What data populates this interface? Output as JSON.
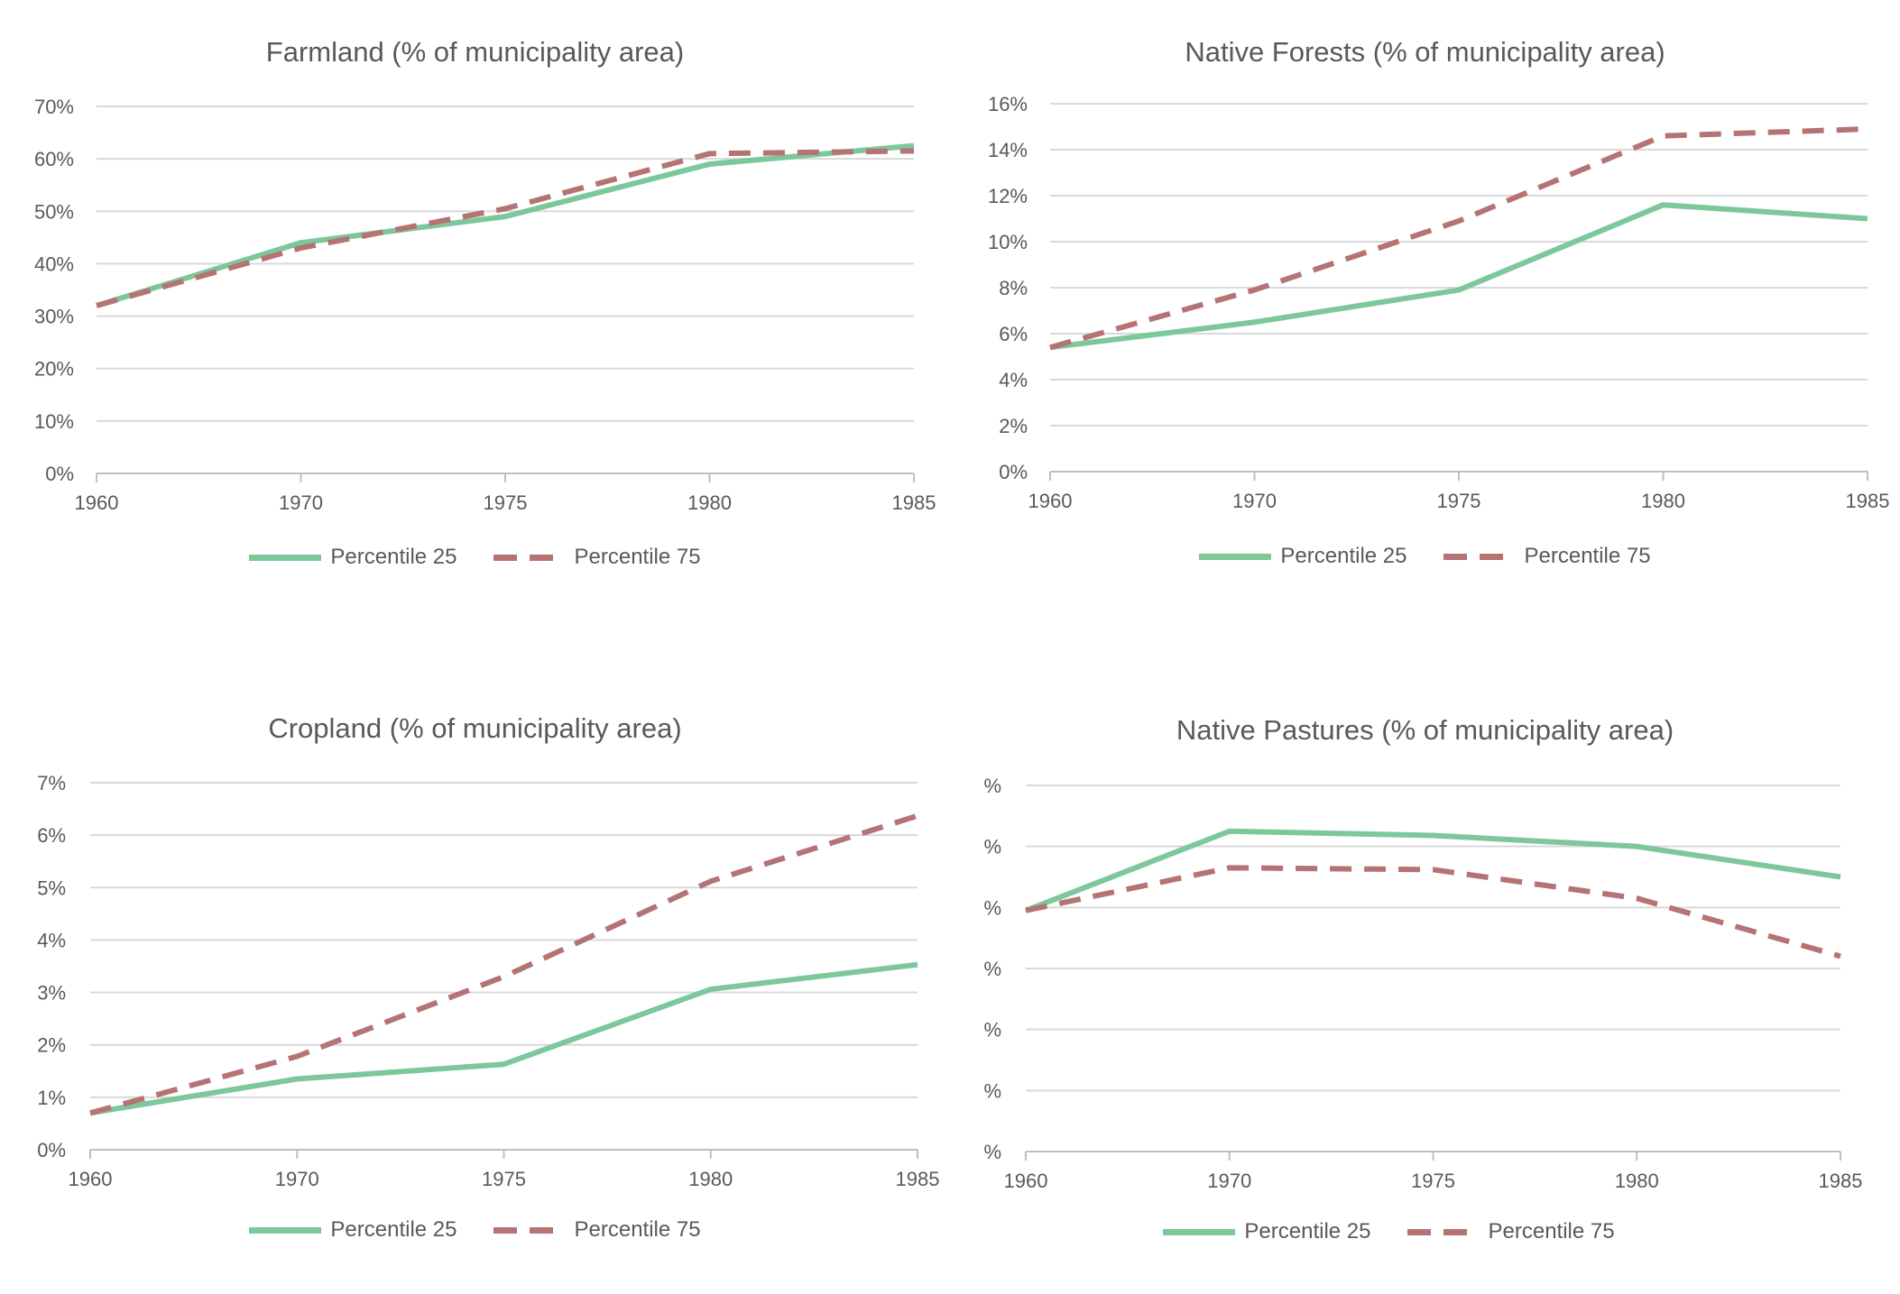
{
  "chart_data": [
    {
      "type": "line",
      "title": "Farmland (% of municipality area)",
      "categories": [
        "1960",
        "1970",
        "1975",
        "1980",
        "1985"
      ],
      "series": [
        {
          "name": "Percentile 25",
          "values": [
            0.32,
            0.44,
            0.49,
            0.59,
            0.625
          ]
        },
        {
          "name": "Percentile 75",
          "values": [
            0.32,
            0.43,
            0.505,
            0.61,
            0.615
          ]
        }
      ],
      "ylim": [
        0,
        0.7
      ],
      "yticks": [
        "0%",
        "10%",
        "20%",
        "30%",
        "40%",
        "50%",
        "60%",
        "70%"
      ],
      "xlabel": "",
      "ylabel": "",
      "grid": true,
      "legend": "bottom"
    },
    {
      "type": "line",
      "title": "Native Forests (% of municipality area)",
      "categories": [
        "1960",
        "1970",
        "1975",
        "1980",
        "1985"
      ],
      "series": [
        {
          "name": "Percentile 25",
          "values": [
            0.054,
            0.065,
            0.079,
            0.116,
            0.11
          ]
        },
        {
          "name": "Percentile 75",
          "values": [
            0.054,
            0.079,
            0.109,
            0.146,
            0.149
          ]
        }
      ],
      "ylim": [
        0,
        0.16
      ],
      "yticks": [
        "0%",
        "2%",
        "4%",
        "6%",
        "8%",
        "10%",
        "12%",
        "14%",
        "16%"
      ],
      "xlabel": "",
      "ylabel": "",
      "grid": true,
      "legend": "bottom"
    },
    {
      "type": "line",
      "title": "Cropland (% of municipality area)",
      "categories": [
        "1960",
        "1970",
        "1975",
        "1980",
        "1985"
      ],
      "series": [
        {
          "name": "Percentile 25",
          "values": [
            0.007,
            0.0135,
            0.0163,
            0.0306,
            0.0353
          ]
        },
        {
          "name": "Percentile 75",
          "values": [
            0.007,
            0.0178,
            0.033,
            0.0512,
            0.0637
          ]
        }
      ],
      "ylim": [
        0,
        0.07
      ],
      "yticks": [
        "0%",
        "1%",
        "2%",
        "3%",
        "4%",
        "5%",
        "6%",
        "7%"
      ],
      "xlabel": "",
      "ylabel": "",
      "grid": true,
      "legend": "bottom"
    },
    {
      "type": "line",
      "title": "Native Pastures (% of municipality area)",
      "categories": [
        "1960",
        "1970",
        "1975",
        "1980",
        "1985"
      ],
      "series": [
        {
          "name": "Percentile 25",
          "values": [
            3.95,
            5.25,
            5.18,
            5.0,
            4.5
          ]
        },
        {
          "name": "Percentile 75",
          "values": [
            3.95,
            4.65,
            4.62,
            4.15,
            3.2
          ]
        }
      ],
      "ylim": [
        0,
        6
      ],
      "yticks": [
        "%",
        "%",
        "%",
        "%",
        "%",
        "%",
        "%"
      ],
      "xlabel": "",
      "ylabel": "",
      "grid": true,
      "legend": "bottom"
    }
  ],
  "colors": {
    "p25": "#7cc89a",
    "p75": "#b57373",
    "grid": "#d9d9d9",
    "axis": "#bfbfbf",
    "text": "#595959"
  }
}
